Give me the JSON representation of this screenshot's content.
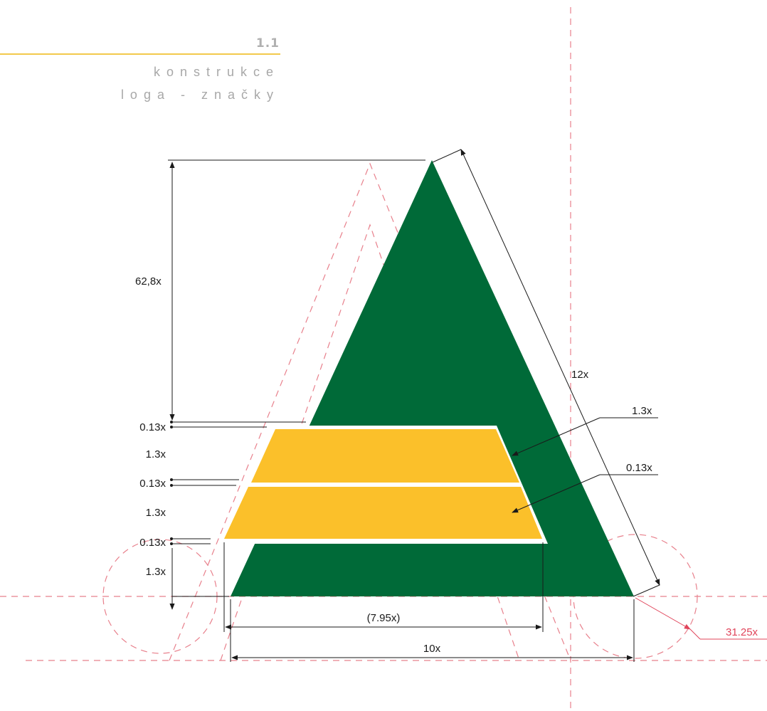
{
  "header": {
    "section_number": "1.1",
    "title_line1": "konstrukce",
    "title_line2": "loga - značky"
  },
  "dimensions": {
    "height_total": "62,8x",
    "side_length": "12x",
    "band_gap_top": "0.13x",
    "band1_height": "1.3x",
    "band_gap_mid": "0.13x",
    "band2_height": "1.3x",
    "band_gap_bottom": "0.13x",
    "base_band_height": "1.3x",
    "callout_band": "1.3x",
    "callout_gap": "0.13x",
    "inner_width": "(7.95x)",
    "base_width": "10x",
    "corner_radius": "31.25x"
  },
  "colors": {
    "triangle": "#006a38",
    "bands": "#fbc02a",
    "guides": "#e8808c",
    "accent_line": "#f2c94c"
  }
}
